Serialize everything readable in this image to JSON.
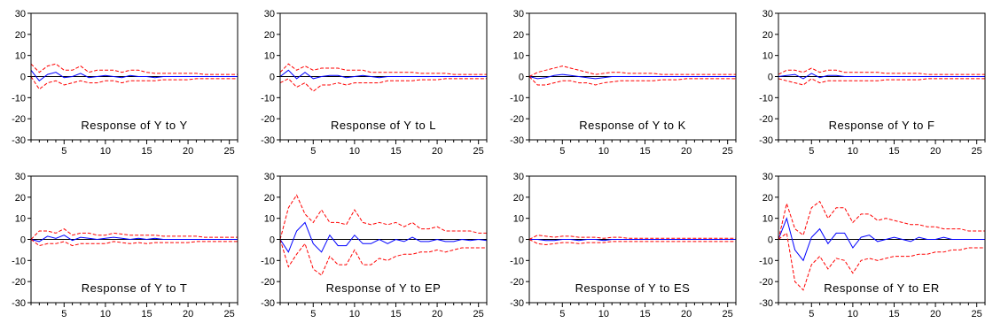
{
  "chart_data": [
    {
      "type": "line",
      "title": "Response of  Y to Y",
      "ylim": [
        -30,
        30
      ],
      "xlim": [
        1,
        26
      ],
      "yticks": [
        "30",
        "20",
        "10",
        "0",
        "-10",
        "-20",
        "-30"
      ],
      "xticks": [
        "5",
        "10",
        "15",
        "20",
        "25"
      ],
      "series": [
        {
          "role": "response",
          "color": "#0000ff",
          "values": [
            3,
            -2,
            1,
            2,
            -0.5,
            0,
            1.5,
            -0.5,
            0,
            0.5,
            0,
            -0.5,
            0.5,
            0,
            0,
            -0.5,
            0,
            0,
            0,
            0,
            0,
            0,
            0,
            0,
            0,
            0
          ]
        },
        {
          "role": "upper",
          "color": "#ff0000",
          "values": [
            6,
            2,
            5,
            6,
            3,
            3,
            5,
            2,
            3,
            3,
            3,
            2,
            3,
            3,
            2,
            1.5,
            1.5,
            1.5,
            1.5,
            1.5,
            1.5,
            1,
            1,
            1,
            1,
            1
          ]
        },
        {
          "role": "lower",
          "color": "#ff0000",
          "values": [
            0,
            -6,
            -3,
            -2,
            -4,
            -3,
            -2,
            -3,
            -3,
            -2,
            -2,
            -3,
            -2,
            -2,
            -2,
            -2,
            -1.5,
            -1.5,
            -1.5,
            -1.5,
            -1,
            -1,
            -1,
            -1,
            -1,
            -1
          ]
        }
      ]
    },
    {
      "type": "line",
      "title": "Response of  Y to L",
      "ylim": [
        -30,
        30
      ],
      "xlim": [
        1,
        26
      ],
      "yticks": [
        "30",
        "20",
        "10",
        "0",
        "-10",
        "-20",
        "-30"
      ],
      "xticks": [
        "5",
        "10",
        "15",
        "20",
        "25"
      ],
      "series": [
        {
          "role": "response",
          "color": "#0000ff",
          "values": [
            0,
            3,
            -1,
            2,
            -1,
            0,
            0.5,
            0.5,
            -0.5,
            0,
            0.5,
            0,
            -0.5,
            0,
            0,
            0,
            0,
            0,
            0,
            0,
            0,
            0,
            0,
            0,
            0,
            0
          ]
        },
        {
          "role": "upper",
          "color": "#ff0000",
          "values": [
            2,
            6,
            3,
            5,
            3,
            4,
            4,
            4,
            3,
            3,
            3,
            2,
            2,
            2,
            2,
            2,
            2,
            1.5,
            1.5,
            1.5,
            1.5,
            1,
            1,
            1,
            1,
            1
          ]
        },
        {
          "role": "lower",
          "color": "#ff0000",
          "values": [
            -3,
            -1,
            -5,
            -3,
            -7,
            -4,
            -4,
            -3,
            -4,
            -3,
            -3,
            -3,
            -3,
            -2,
            -2,
            -2,
            -2,
            -1.5,
            -1.5,
            -1.5,
            -1,
            -1,
            -1,
            -1,
            -1,
            -1
          ]
        }
      ]
    },
    {
      "type": "line",
      "title": "Response of  Y to K",
      "ylim": [
        -30,
        30
      ],
      "xlim": [
        1,
        26
      ],
      "yticks": [
        "30",
        "20",
        "10",
        "0",
        "-10",
        "-20",
        "-30"
      ],
      "xticks": [
        "5",
        "10",
        "15",
        "20",
        "25"
      ],
      "series": [
        {
          "role": "response",
          "color": "#0000ff",
          "values": [
            0,
            -1,
            -0.5,
            0.5,
            1,
            0.5,
            0,
            -0.5,
            -1,
            -0.5,
            0,
            0,
            0,
            0,
            0,
            0,
            0,
            0,
            0,
            0,
            0,
            0,
            0,
            0,
            0,
            0
          ]
        },
        {
          "role": "upper",
          "color": "#ff0000",
          "values": [
            0,
            2,
            3,
            4,
            5,
            4,
            3,
            2,
            1,
            1.5,
            2,
            2,
            1.5,
            1.5,
            1.5,
            1.5,
            1,
            1,
            1,
            1,
            1,
            1,
            1,
            1,
            1,
            1
          ]
        },
        {
          "role": "lower",
          "color": "#ff0000",
          "values": [
            0,
            -4,
            -4,
            -3,
            -2,
            -2,
            -3,
            -3,
            -4,
            -3,
            -2.5,
            -2,
            -2,
            -2,
            -2,
            -2,
            -1.5,
            -1.5,
            -1.5,
            -1,
            -1,
            -1,
            -1,
            -1,
            -1,
            -1
          ]
        }
      ]
    },
    {
      "type": "line",
      "title": "Response of  Y to F",
      "ylim": [
        -30,
        30
      ],
      "xlim": [
        1,
        26
      ],
      "yticks": [
        "30",
        "20",
        "10",
        "0",
        "-10",
        "-20",
        "-30"
      ],
      "xticks": [
        "5",
        "10",
        "15",
        "20",
        "25"
      ],
      "series": [
        {
          "role": "response",
          "color": "#0000ff",
          "values": [
            0,
            0.5,
            1,
            -1,
            1.5,
            -0.5,
            0.5,
            0.5,
            0,
            0,
            0,
            0,
            0,
            0,
            0,
            0,
            0,
            0,
            0,
            0,
            0,
            0,
            0,
            0,
            0,
            0
          ]
        },
        {
          "role": "upper",
          "color": "#ff0000",
          "values": [
            1,
            3,
            3,
            2,
            4,
            2,
            3,
            3,
            2,
            2,
            2,
            2,
            2,
            1.5,
            1.5,
            1.5,
            1.5,
            1.5,
            1,
            1,
            1,
            1,
            1,
            1,
            1,
            1
          ]
        },
        {
          "role": "lower",
          "color": "#ff0000",
          "values": [
            -1,
            -2,
            -3,
            -4,
            -1,
            -3,
            -2,
            -2,
            -2,
            -2,
            -2,
            -2,
            -2,
            -1.5,
            -1.5,
            -1.5,
            -1.5,
            -1.5,
            -1,
            -1,
            -1,
            -1,
            -1,
            -1,
            -1,
            -1
          ]
        }
      ]
    },
    {
      "type": "line",
      "title": "Response of  Y to T",
      "ylim": [
        -30,
        30
      ],
      "xlim": [
        1,
        26
      ],
      "yticks": [
        "30",
        "20",
        "10",
        "0",
        "-10",
        "-20",
        "-30"
      ],
      "xticks": [
        "5",
        "10",
        "15",
        "20",
        "25"
      ],
      "series": [
        {
          "role": "response",
          "color": "#0000ff",
          "values": [
            0,
            -1,
            1.5,
            0.5,
            2,
            -0.5,
            1,
            0.5,
            0,
            0.5,
            1,
            0.5,
            0,
            0.5,
            0,
            0.5,
            0,
            0,
            0,
            0,
            0,
            0,
            0,
            0,
            0,
            0
          ]
        },
        {
          "role": "upper",
          "color": "#ff0000",
          "values": [
            0,
            4,
            4,
            3,
            5,
            2,
            3,
            3,
            2,
            2,
            3,
            2.5,
            2,
            2,
            2,
            2,
            1.5,
            1.5,
            1.5,
            1.5,
            1.5,
            1,
            1,
            1,
            1,
            1
          ]
        },
        {
          "role": "lower",
          "color": "#ff0000",
          "values": [
            0,
            -3,
            -2,
            -2,
            -1,
            -3,
            -2,
            -2,
            -2,
            -2,
            -1,
            -1.5,
            -2,
            -1.5,
            -2,
            -1.5,
            -1.5,
            -1.5,
            -1.5,
            -1.5,
            -1,
            -1,
            -1,
            -1,
            -1,
            -1
          ]
        }
      ]
    },
    {
      "type": "line",
      "title": "Response of  Y to EP",
      "ylim": [
        -30,
        30
      ],
      "xlim": [
        1,
        26
      ],
      "yticks": [
        "30",
        "20",
        "10",
        "0",
        "-10",
        "-20",
        "-30"
      ],
      "xticks": [
        "5",
        "10",
        "15",
        "20",
        "25"
      ],
      "series": [
        {
          "role": "response",
          "color": "#0000ff",
          "values": [
            0,
            -6,
            4,
            8,
            -2,
            -6,
            2,
            -3,
            -3,
            2,
            -2,
            -2,
            0,
            -2,
            0,
            -1,
            1,
            -1,
            -1,
            0,
            -1,
            -1,
            0,
            -0.5,
            0,
            -0.5
          ]
        },
        {
          "role": "upper",
          "color": "#ff0000",
          "values": [
            0,
            15,
            21,
            12,
            8,
            14,
            8,
            8,
            7,
            14,
            8,
            7,
            8,
            7,
            8,
            6,
            8,
            5,
            5,
            6,
            4,
            4,
            4,
            4,
            3,
            3
          ]
        },
        {
          "role": "lower",
          "color": "#ff0000",
          "values": [
            0,
            -13,
            -7,
            -2,
            -14,
            -17,
            -8,
            -12,
            -12,
            -5,
            -12,
            -12,
            -9,
            -10,
            -8,
            -7,
            -7,
            -6,
            -6,
            -5,
            -6,
            -5,
            -4,
            -4,
            -4,
            -4
          ]
        }
      ]
    },
    {
      "type": "line",
      "title": "Response of  Y to ES",
      "ylim": [
        -30,
        30
      ],
      "xlim": [
        1,
        26
      ],
      "yticks": [
        "30",
        "20",
        "10",
        "0",
        "-10",
        "-20",
        "-30"
      ],
      "xticks": [
        "5",
        "10",
        "15",
        "20",
        "25"
      ],
      "series": [
        {
          "role": "response",
          "color": "#0000ff",
          "values": [
            0,
            0,
            -0.5,
            -0.5,
            0,
            0,
            -0.5,
            0,
            0,
            -0.5,
            0,
            0,
            0,
            0,
            0,
            0,
            0,
            0,
            0,
            0,
            0,
            0,
            0,
            0,
            0,
            0
          ]
        },
        {
          "role": "upper",
          "color": "#ff0000",
          "values": [
            0,
            2,
            1.5,
            1,
            1.5,
            1.5,
            1,
            1,
            1,
            0.5,
            1,
            1,
            0.5,
            0.5,
            0.5,
            0.5,
            0.5,
            0.5,
            0.5,
            0.5,
            0.5,
            0.5,
            0.5,
            0.5,
            0.5,
            0.5
          ]
        },
        {
          "role": "lower",
          "color": "#ff0000",
          "values": [
            0,
            -2,
            -2.5,
            -2,
            -1.5,
            -1.5,
            -2,
            -1.5,
            -1.5,
            -1.5,
            -1,
            -1,
            -1,
            -1,
            -1,
            -1,
            -1,
            -1,
            -1,
            -1,
            -1,
            -1,
            -1,
            -1,
            -1,
            -1
          ]
        }
      ]
    },
    {
      "type": "line",
      "title": "Response of  Y to ER",
      "ylim": [
        -30,
        30
      ],
      "xlim": [
        1,
        26
      ],
      "yticks": [
        "30",
        "20",
        "10",
        "0",
        "-10",
        "-20",
        "-30"
      ],
      "xticks": [
        "5",
        "10",
        "15",
        "20",
        "25"
      ],
      "series": [
        {
          "role": "response",
          "color": "#0000ff",
          "values": [
            0,
            10,
            -5,
            -10,
            1,
            5,
            -2,
            3,
            3,
            -4,
            1,
            2,
            -1,
            0,
            1,
            0,
            -1,
            1,
            0,
            0,
            1,
            0,
            0,
            0,
            0,
            0
          ]
        },
        {
          "role": "upper",
          "color": "#ff0000",
          "values": [
            0,
            17,
            5,
            2,
            15,
            18,
            10,
            15,
            15,
            8,
            12,
            12,
            9,
            10,
            9,
            8,
            7,
            7,
            6,
            6,
            5,
            5,
            5,
            4,
            4,
            4
          ]
        },
        {
          "role": "lower",
          "color": "#ff0000",
          "values": [
            0,
            3,
            -20,
            -24,
            -12,
            -8,
            -14,
            -9,
            -10,
            -16,
            -10,
            -9,
            -10,
            -9,
            -8,
            -8,
            -8,
            -7,
            -7,
            -6,
            -6,
            -5,
            -5,
            -4,
            -4,
            -4
          ]
        }
      ]
    }
  ]
}
